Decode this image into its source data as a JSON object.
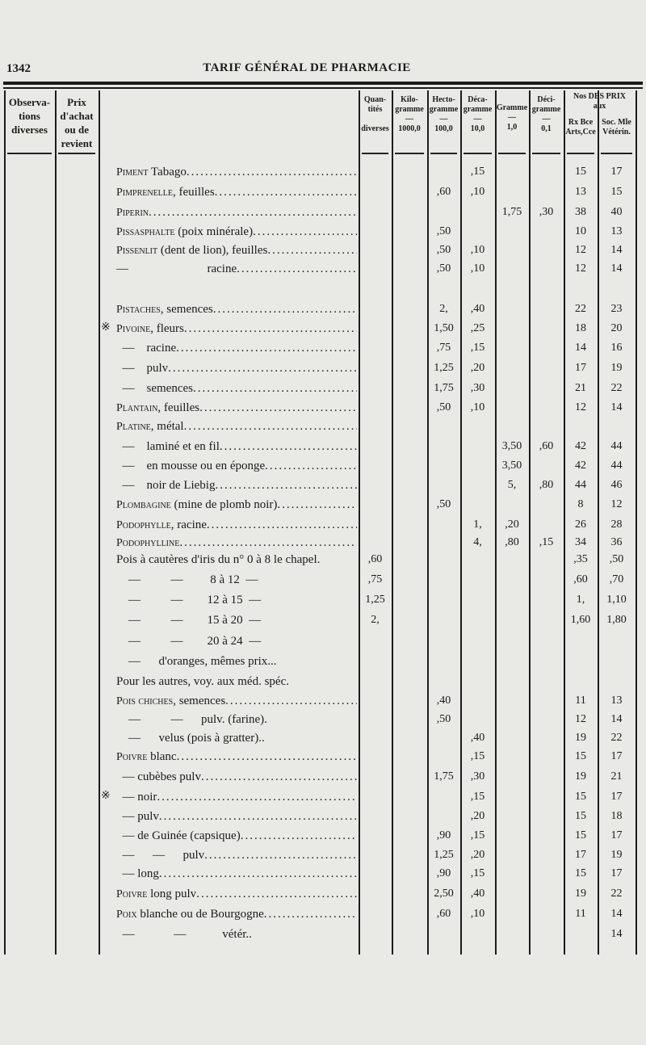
{
  "page_number": "1342",
  "running_title": "TARIF GÉNÉRAL DE PHARMACIE",
  "headers": {
    "observations": "Observa-\ntions\ndiverses",
    "prix": "Prix\nd'achat\nou de\nrevient",
    "quantites": "Quan-\ntités\n\ndiverses",
    "kilo": "Kilo-\ngramme\n—\n1000,0",
    "hecto": "Hecto-\ngramme\n—\n100,0",
    "deca": "Déca-\ngramme\n—\n10,0",
    "gramme": "Gramme\n—\n1,0",
    "deci": "Déci-\ngramme\n—\n0,1",
    "prix_group": "Nos DES PRIX\naux",
    "arts": "Rx Bce\nArts,Cce",
    "soc": "Soc. Mle\nVétérin."
  },
  "rows": [
    {
      "sc": "Piment",
      "text": " Tabago",
      "cols": [
        "",
        "",
        "",
        ",15",
        "",
        "",
        "15",
        "17"
      ]
    },
    {
      "sc": "Pimprenelle",
      "text": ", feuilles",
      "cols": [
        "",
        "",
        ",60",
        ",10",
        "",
        "",
        "13",
        "15"
      ]
    },
    {
      "sc": "Piperin",
      "text": "",
      "cols": [
        "",
        "",
        "",
        "",
        "1,75",
        ",30",
        "38",
        "40"
      ]
    },
    {
      "sc": "Pissasphalte",
      "text": " (poix minérale)",
      "cols": [
        "",
        "",
        ",50",
        "",
        "",
        "",
        "10",
        "13"
      ]
    },
    {
      "sc": "Pissenlit",
      "text": " (dent de lion), feuilles",
      "cols": [
        "",
        "",
        ",50",
        ",10",
        "",
        "",
        "12",
        "14"
      ]
    },
    {
      "sc": "",
      "text": "—                          racine",
      "cols": [
        "",
        "",
        ",50",
        ",10",
        "",
        "",
        "12",
        "14"
      ]
    },
    {
      "sc": "",
      "text": "",
      "cols": [
        "",
        "",
        "",
        "",
        "",
        "",
        "",
        ""
      ]
    },
    {
      "sc": "Pistaches",
      "text": ", semences",
      "cols": [
        "",
        "",
        "2,",
        ",40",
        "",
        "",
        "22",
        "23"
      ]
    },
    {
      "mark": "※",
      "sc": "Pivoine",
      "text": ", fleurs",
      "cols": [
        "",
        "",
        "1,50",
        ",25",
        "",
        "",
        "18",
        "20"
      ]
    },
    {
      "sc": "",
      "text": "  —    racine",
      "cols": [
        "",
        "",
        ",75",
        ",15",
        "",
        "",
        "14",
        "16"
      ]
    },
    {
      "sc": "",
      "text": "  —    pulv",
      "cols": [
        "",
        "",
        "1,25",
        ",20",
        "",
        "",
        "17",
        "19"
      ]
    },
    {
      "sc": "",
      "text": "  —    semences",
      "cols": [
        "",
        "",
        "1,75",
        ",30",
        "",
        "",
        "21",
        "22"
      ]
    },
    {
      "sc": "Plantain",
      "text": ", feuilles",
      "cols": [
        "",
        "",
        ",50",
        ",10",
        "",
        "",
        "12",
        "14"
      ]
    },
    {
      "sc": "Platine",
      "text": ", métal",
      "cols": [
        "",
        "",
        "",
        "",
        "",
        "",
        "",
        ""
      ]
    },
    {
      "sc": "",
      "text": "  —    laminé et en fil",
      "cols": [
        "",
        "",
        "",
        "",
        "3,50",
        ",60",
        "42",
        "44"
      ]
    },
    {
      "sc": "",
      "text": "  —    en mousse ou en éponge",
      "cols": [
        "",
        "",
        "",
        "",
        "3,50",
        "",
        "42",
        "44"
      ]
    },
    {
      "sc": "",
      "text": "  —    noir de Liebig",
      "cols": [
        "",
        "",
        "",
        "",
        "5,",
        ",80",
        "44",
        "46"
      ]
    },
    {
      "sc": "Plombagine",
      "text": " (mine de plomb noir)",
      "cols": [
        "",
        "",
        ",50",
        "",
        "",
        "",
        "8",
        "12"
      ]
    },
    {
      "sc": "Podophylle",
      "text": ", racine",
      "cols": [
        "",
        "",
        "",
        "1,",
        ",20",
        "",
        "26",
        "28"
      ]
    },
    {
      "sc": "Podophylline",
      "text": "",
      "cols": [
        "",
        "",
        "",
        "4,",
        ",80",
        ",15",
        "34",
        "36"
      ]
    },
    {
      "sc": "",
      "text": "Pois à cautères d'iris du n° 0 à 8 le chapel.",
      "nodots": true,
      "cols": [
        ",60",
        "",
        "",
        "",
        "",
        "",
        ",35",
        ",50"
      ]
    },
    {
      "sc": "",
      "text": "    —          —         8 à 12  —",
      "nodots": true,
      "cols": [
        ",75",
        "",
        "",
        "",
        "",
        "",
        ",60",
        ",70"
      ]
    },
    {
      "sc": "",
      "text": "    —          —        12 à 15  —",
      "nodots": true,
      "cols": [
        "1,25",
        "",
        "",
        "",
        "",
        "",
        "1,",
        "1,10"
      ]
    },
    {
      "sc": "",
      "text": "    —          —        15 à 20  —",
      "nodots": true,
      "cols": [
        "2,",
        "",
        "",
        "",
        "",
        "",
        "1,60",
        "1,80"
      ]
    },
    {
      "sc": "",
      "text": "    —          —        20 à 24  —",
      "nodots": true,
      "cols": [
        "",
        "",
        "",
        "",
        "",
        "",
        "",
        ""
      ]
    },
    {
      "sc": "",
      "text": "    —      d'oranges, mêmes prix...",
      "nodots": true,
      "cols": [
        "",
        "",
        "",
        "",
        "",
        "",
        "",
        ""
      ]
    },
    {
      "sc": "",
      "text": "Pour les autres, voy. aux méd. spéc.",
      "nodots": true,
      "cols": [
        "",
        "",
        "",
        "",
        "",
        "",
        "",
        ""
      ]
    },
    {
      "sc": "Pois chiches",
      "text": ", semences",
      "cols": [
        "",
        "",
        ",40",
        "",
        "",
        "",
        "11",
        "13"
      ]
    },
    {
      "sc": "",
      "text": "    —          —      pulv. (farine).",
      "nodots": true,
      "cols": [
        "",
        "",
        ",50",
        "",
        "",
        "",
        "12",
        "14"
      ]
    },
    {
      "sc": "",
      "text": "    —      velus (pois à gratter)..",
      "nodots": true,
      "cols": [
        "",
        "",
        "",
        ",40",
        "",
        "",
        "19",
        "22"
      ]
    },
    {
      "sc": "Poivre",
      "text": " blanc",
      "cols": [
        "",
        "",
        "",
        ",15",
        "",
        "",
        "15",
        "17"
      ]
    },
    {
      "sc": "",
      "text": "  — cubèbes pulv",
      "cols": [
        "",
        "",
        "1,75",
        ",30",
        "",
        "",
        "19",
        "21"
      ]
    },
    {
      "mark": "※",
      "sc": "",
      "text": "  — noir",
      "cols": [
        "",
        "",
        "",
        ",15",
        "",
        "",
        "15",
        "17"
      ]
    },
    {
      "sc": "",
      "text": "  — pulv",
      "cols": [
        "",
        "",
        "",
        ",20",
        "",
        "",
        "15",
        "18"
      ]
    },
    {
      "sc": "",
      "text": "  — de Guinée (capsique)",
      "cols": [
        "",
        "",
        ",90",
        ",15",
        "",
        "",
        "15",
        "17"
      ]
    },
    {
      "sc": "",
      "text": "  —      —      pulv",
      "cols": [
        "",
        "",
        "1,25",
        ",20",
        "",
        "",
        "17",
        "19"
      ]
    },
    {
      "sc": "",
      "text": "  — long",
      "cols": [
        "",
        "",
        ",90",
        ",15",
        "",
        "",
        "15",
        "17"
      ]
    },
    {
      "sc": "Poivre",
      "text": " long pulv",
      "cols": [
        "",
        "",
        "2,50",
        ",40",
        "",
        "",
        "19",
        "22"
      ]
    },
    {
      "sc": "Poix",
      "text": " blanche ou de Bourgogne",
      "cols": [
        "",
        "",
        ",60",
        ",10",
        "",
        "",
        "11",
        "14"
      ]
    },
    {
      "sc": "",
      "text": "  —             —            vétér..",
      "nodots": true,
      "cols": [
        "",
        "",
        "",
        "",
        "",
        "",
        "",
        "14"
      ]
    }
  ]
}
